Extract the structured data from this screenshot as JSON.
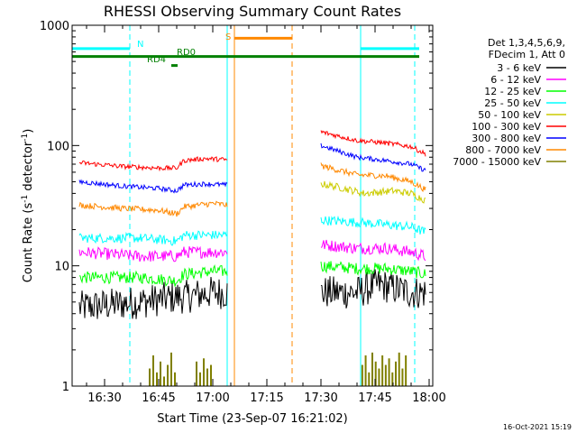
{
  "chart_data": {
    "type": "line",
    "title": "RHESSI Observing Summary Count Rates",
    "xlabel": "Start Time (23-Sep-07 16:21:02)",
    "ylabel_main": "Count Rate (s",
    "ylabel_sup1": "-1",
    "ylabel_mid": " detector",
    "ylabel_sup2": "-1",
    "ylabel_end": ")",
    "y_scale": "log",
    "xlim": [
      "16:21",
      "18:01"
    ],
    "ylim": [
      1,
      1000
    ],
    "x_ticks": [
      "16:30",
      "16:45",
      "17:00",
      "17:15",
      "17:30",
      "17:45",
      "18:00"
    ],
    "y_ticks": [
      {
        "v": 1,
        "label": "1"
      },
      {
        "v": 10,
        "label": "10"
      },
      {
        "v": 100,
        "label": "100"
      },
      {
        "v": 1000,
        "label": "1000"
      }
    ],
    "legend_header": [
      "Det 1,3,4,5,6,9,",
      "FDecim 1, Att 0"
    ],
    "legend_position": "right",
    "timestamp": "16-Oct-2021 15:19",
    "series": [
      {
        "name": "3 - 6 keV",
        "color": "#000000",
        "noise": 0.14,
        "segments": [
          {
            "t": [
              "16:23",
              "16:40",
              "16:50",
              "16:52",
              "17:00",
              "17:04"
            ],
            "v": [
              4.5,
              5.0,
              5.5,
              5.5,
              6.0,
              6.0
            ]
          },
          {
            "t": [
              "17:30",
              "17:40",
              "17:46",
              "17:55",
              "17:59"
            ],
            "v": [
              6.0,
              6.0,
              7.0,
              6.0,
              6.0
            ]
          }
        ]
      },
      {
        "name": "6 - 12 keV",
        "color": "#ff00ff",
        "noise": 0.05,
        "segments": [
          {
            "t": [
              "16:23",
              "16:40",
              "16:50",
              "16:52",
              "17:00",
              "17:04"
            ],
            "v": [
              13,
              12,
              12,
              13,
              13,
              13
            ]
          },
          {
            "t": [
              "17:30",
              "17:40",
              "17:48",
              "17:55",
              "17:59"
            ],
            "v": [
              15,
              14,
              14,
              13,
              12
            ]
          }
        ]
      },
      {
        "name": "12 - 25 keV",
        "color": "#00ff00",
        "noise": 0.05,
        "segments": [
          {
            "t": [
              "16:23",
              "16:40",
              "16:50",
              "16:52",
              "17:00",
              "17:04"
            ],
            "v": [
              8,
              8,
              7.5,
              8.5,
              9,
              9
            ]
          },
          {
            "t": [
              "17:30",
              "17:40",
              "17:48",
              "17:55",
              "17:59"
            ],
            "v": [
              10,
              9.5,
              9.5,
              9,
              8.5
            ]
          }
        ]
      },
      {
        "name": "25 - 50 keV",
        "color": "#00ffff",
        "noise": 0.04,
        "segments": [
          {
            "t": [
              "16:23",
              "16:40",
              "16:50",
              "16:52",
              "17:00",
              "17:04"
            ],
            "v": [
              17,
              17,
              16,
              18,
              18,
              18
            ]
          },
          {
            "t": [
              "17:30",
              "17:40",
              "17:48",
              "17:55",
              "17:59"
            ],
            "v": [
              24,
              23,
              22,
              21,
              19
            ]
          }
        ]
      },
      {
        "name": "50 - 100 keV",
        "color": "#cccc00",
        "noise": 0.03,
        "segments": [
          {
            "t": [
              "17:30",
              "17:35",
              "17:42",
              "17:50",
              "17:55",
              "17:59"
            ],
            "v": [
              48,
              45,
              40,
              42,
              40,
              35
            ]
          }
        ]
      },
      {
        "name": "100 - 300 keV",
        "color": "#ff0000",
        "noise": 0.02,
        "segments": [
          {
            "t": [
              "16:23",
              "16:35",
              "16:45",
              "16:50",
              "16:52",
              "16:58",
              "17:04"
            ],
            "v": [
              72,
              67,
              65,
              65,
              75,
              78,
              76
            ]
          },
          {
            "t": [
              "17:30",
              "17:40",
              "17:48",
              "17:55",
              "17:59"
            ],
            "v": [
              130,
              110,
              105,
              98,
              85
            ]
          }
        ]
      },
      {
        "name": "300 - 800 keV",
        "color": "#0000ff",
        "noise": 0.02,
        "segments": [
          {
            "t": [
              "16:23",
              "16:35",
              "16:45",
              "16:50",
              "16:52",
              "16:58",
              "17:04"
            ],
            "v": [
              50,
              46,
              44,
              42,
              47,
              48,
              47
            ]
          },
          {
            "t": [
              "17:30",
              "17:40",
              "17:48",
              "17:55",
              "17:59"
            ],
            "v": [
              100,
              80,
              75,
              70,
              62
            ]
          }
        ]
      },
      {
        "name": "800 - 7000 keV",
        "color": "#ff8800",
        "noise": 0.025,
        "segments": [
          {
            "t": [
              "16:23",
              "16:35",
              "16:45",
              "16:50",
              "16:52",
              "17:00",
              "17:04"
            ],
            "v": [
              32,
              30,
              29,
              27,
              31,
              33,
              32
            ]
          },
          {
            "t": [
              "17:30",
              "17:40",
              "17:48",
              "17:55",
              "17:59"
            ],
            "v": [
              68,
              57,
              56,
              50,
              43
            ]
          }
        ]
      },
      {
        "name": "7000 - 15000 keV",
        "color": "#808000",
        "noise": 0.0,
        "segments": []
      }
    ],
    "bursts": [
      {
        "color": "#808000",
        "t0": "16:42",
        "t1": "16:50",
        "peaks": [
          1.4,
          1.8,
          1.3,
          1.6,
          1.2,
          1.5,
          1.9,
          1.3
        ]
      },
      {
        "color": "#808000",
        "t0": "16:55",
        "t1": "17:00",
        "peaks": [
          1.6,
          1.3,
          1.7,
          1.4,
          1.5
        ]
      },
      {
        "color": "#808000",
        "t0": "17:41",
        "t1": "17:54",
        "peaks": [
          1.5,
          1.8,
          1.3,
          1.9,
          1.6,
          1.4,
          1.8,
          1.5,
          1.7,
          1.3,
          1.6,
          1.9,
          1.4,
          1.8
        ]
      }
    ],
    "markers": {
      "N_label": "N",
      "S_label": "S",
      "RD4_label": "RD4",
      "RD0_label": "RD0",
      "cyan_solid": [
        "16:21",
        "17:04",
        "17:41",
        "18:01"
      ],
      "cyan_dashed": [
        "16:37",
        "17:56"
      ],
      "orange_solid": "17:06",
      "orange_dashed": "17:22",
      "green_level": 550,
      "cyan_bar_level": 640,
      "orange_bar_level": 780
    }
  },
  "colors": {
    "cyan": "#00ffff",
    "green": "#008000",
    "orange": "#ff8800",
    "axis": "#000000"
  }
}
